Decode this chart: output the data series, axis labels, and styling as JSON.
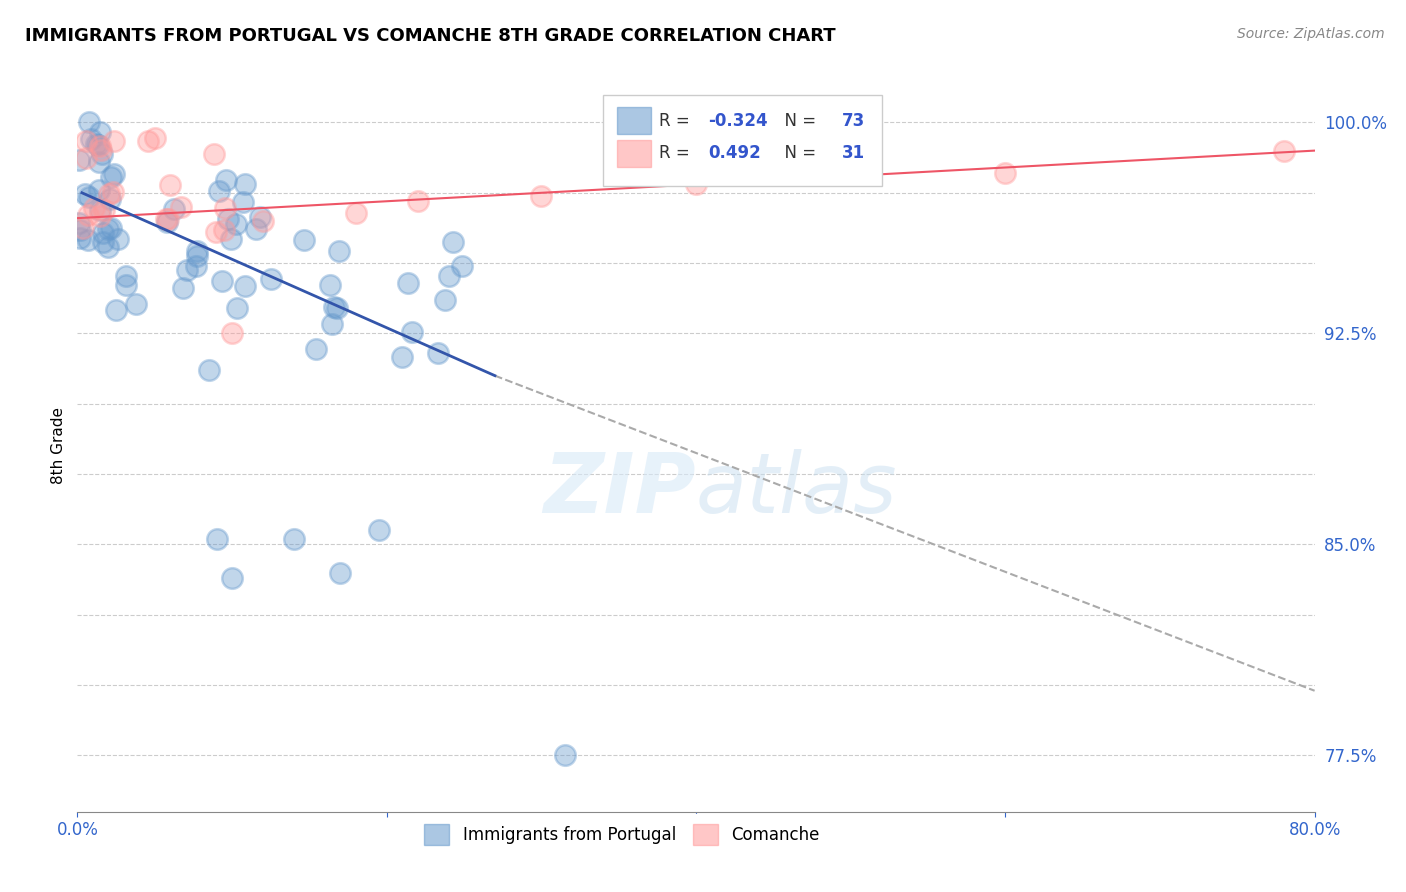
{
  "title": "IMMIGRANTS FROM PORTUGAL VS COMANCHE 8TH GRADE CORRELATION CHART",
  "source": "Source: ZipAtlas.com",
  "ylabel": "8th Grade",
  "xlim": [
    0.0,
    0.8
  ],
  "ylim": [
    0.755,
    1.015
  ],
  "background_color": "#ffffff",
  "blue_color": "#6699cc",
  "pink_color": "#ff9999",
  "blue_line_color": "#3355aa",
  "pink_line_color": "#ee5566",
  "dashed_line_color": "#aaaaaa",
  "grid_color": "#cccccc",
  "legend_blue_label": "Immigrants from Portugal",
  "legend_pink_label": "Comanche",
  "R_blue": -0.324,
  "N_blue": 73,
  "R_pink": 0.492,
  "N_pink": 31,
  "ytick_positions": [
    0.775,
    0.8,
    0.825,
    0.85,
    0.875,
    0.9,
    0.925,
    0.95,
    0.975,
    1.0
  ],
  "ytick_labeled": [
    1.0,
    0.925,
    0.85,
    0.775
  ],
  "ytick_label_texts": [
    "100.0%",
    "92.5%",
    "85.0%",
    "77.5%"
  ],
  "xtick_positions": [
    0.0,
    0.2,
    0.4,
    0.6,
    0.8
  ],
  "xtick_labels": [
    "0.0%",
    "",
    "",
    "",
    "80.0%"
  ],
  "blue_line_x": [
    0.003,
    0.27
  ],
  "blue_line_y": [
    0.975,
    0.91
  ],
  "dash_line_x": [
    0.27,
    0.8
  ],
  "dash_line_y": [
    0.91,
    0.798
  ],
  "pink_line_x": [
    0.0,
    0.8
  ],
  "pink_line_y": [
    0.966,
    0.99
  ],
  "seed": 17
}
